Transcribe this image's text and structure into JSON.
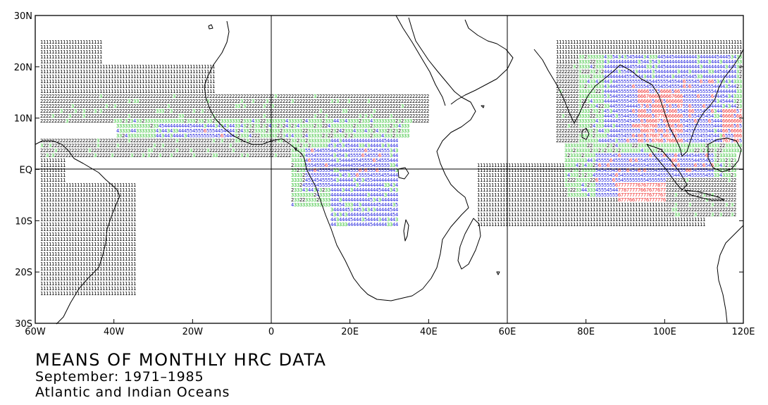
{
  "map": {
    "title": "MEANS OF MONTHLY HRC DATA",
    "period": "September: 1971–1985",
    "region": "Atlantic and Indian Oceans",
    "x_ticks": [
      "60W",
      "40W",
      "20W",
      "0",
      "20E",
      "40E",
      "60E",
      "80E",
      "100E",
      "120E"
    ],
    "y_ticks": [
      "30N",
      "20N",
      "10N",
      "EQ",
      "10S",
      "20S",
      "30S"
    ],
    "lon_range": [
      -60,
      120
    ],
    "lat_range": [
      -30,
      30
    ],
    "value_colors": {
      "1": "#000000",
      "2": "#000000",
      "3": "#22bb22",
      "4": "#2222dd",
      "5": "#2222dd",
      "6": "#ee2222",
      "7": "#ee2222",
      "8": "#ee2222"
    }
  },
  "chart_data": {
    "type": "heatmap",
    "title": "MEANS OF MONTHLY HRC DATA",
    "subtitle": "September: 1971–1985",
    "annotation": "Atlantic and Indian Oceans",
    "xlim": [
      -60,
      120
    ],
    "ylim": [
      -30,
      30
    ],
    "grid": false,
    "regions": [
      {
        "lon": [
          -59,
          -43
        ],
        "lat": [
          20,
          27
        ],
        "value": 1
      },
      {
        "lon": [
          -59,
          -15
        ],
        "lat": [
          14,
          20
        ],
        "value": 1
      },
      {
        "lon": [
          -59,
          40
        ],
        "lat": [
          9,
          14
        ],
        "value": 2
      },
      {
        "lon": [
          -40,
          35
        ],
        "lat": [
          6,
          10
        ],
        "value": 3
      },
      {
        "lon": [
          -30,
          -10
        ],
        "lat": [
          6,
          9
        ],
        "value": 4
      },
      {
        "lon": [
          -22,
          -12
        ],
        "lat": [
          6,
          8
        ],
        "value": 5
      },
      {
        "lon": [
          -59,
          5
        ],
        "lat": [
          2,
          6
        ],
        "value": 2
      },
      {
        "lon": [
          -59,
          -53
        ],
        "lat": [
          -25,
          2
        ],
        "value": 1
      },
      {
        "lon": [
          -53,
          -35
        ],
        "lat": [
          -25,
          -3
        ],
        "value": 1
      },
      {
        "lon": [
          5,
          20
        ],
        "lat": [
          -8,
          6
        ],
        "value": 3
      },
      {
        "lon": [
          8,
          15
        ],
        "lat": [
          -4,
          4
        ],
        "value": 5
      },
      {
        "lon": [
          15,
          32
        ],
        "lat": [
          -12,
          6
        ],
        "value": 4
      },
      {
        "lon": [
          20,
          30
        ],
        "lat": [
          -2,
          4
        ],
        "value": 5
      },
      {
        "lon": [
          52,
          110
        ],
        "lat": [
          -12,
          1
        ],
        "value": 1
      },
      {
        "lon": [
          72,
          120
        ],
        "lat": [
          12,
          27
        ],
        "value": 1
      },
      {
        "lon": [
          72,
          90
        ],
        "lat": [
          5,
          20
        ],
        "value": 2
      },
      {
        "lon": [
          78,
          120
        ],
        "lat": [
          3,
          22
        ],
        "value": 3
      },
      {
        "lon": [
          84,
          118
        ],
        "lat": [
          5,
          22
        ],
        "value": 4
      },
      {
        "lon": [
          88,
          112
        ],
        "lat": [
          0,
          17
        ],
        "value": 5
      },
      {
        "lon": [
          93,
          104
        ],
        "lat": [
          3,
          15
        ],
        "value": 6
      },
      {
        "lon": [
          74,
          118
        ],
        "lat": [
          -6,
          5
        ],
        "value": 3
      },
      {
        "lon": [
          82,
          112
        ],
        "lat": [
          -6,
          3
        ],
        "value": 5
      },
      {
        "lon": [
          88,
          100
        ],
        "lat": [
          -7,
          -3
        ],
        "value": 7
      },
      {
        "lon": [
          100,
          118
        ],
        "lat": [
          -10,
          -2
        ],
        "value": 2
      },
      {
        "lon": [
          114,
          120
        ],
        "lat": [
          5,
          12
        ],
        "value": 6
      }
    ]
  }
}
